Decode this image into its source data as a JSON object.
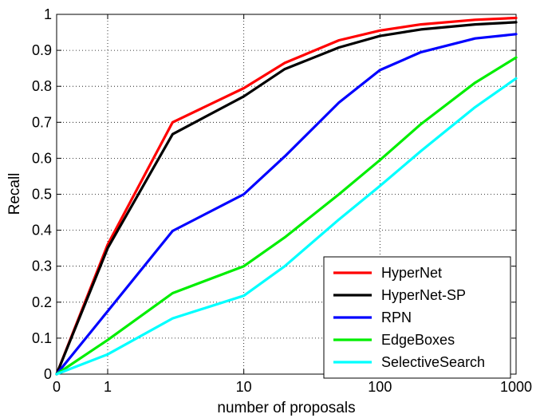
{
  "chart_data": {
    "type": "line",
    "title": "",
    "xlabel": "number of proposals",
    "ylabel": "Recall",
    "x_scale": "log",
    "x_ticks": [
      {
        "value": 0,
        "label": "0"
      },
      {
        "value": 1,
        "label": "1"
      },
      {
        "value": 10,
        "label": "10"
      },
      {
        "value": 100,
        "label": "100"
      },
      {
        "value": 1000,
        "label": "1000"
      }
    ],
    "y_ticks": [
      {
        "value": 0,
        "label": "0"
      },
      {
        "value": 0.1,
        "label": "0.1"
      },
      {
        "value": 0.2,
        "label": "0.2"
      },
      {
        "value": 0.3,
        "label": "0.3"
      },
      {
        "value": 0.4,
        "label": "0.4"
      },
      {
        "value": 0.5,
        "label": "0.5"
      },
      {
        "value": 0.6,
        "label": "0.6"
      },
      {
        "value": 0.7,
        "label": "0.7"
      },
      {
        "value": 0.8,
        "label": "0.8"
      },
      {
        "value": 0.9,
        "label": "0.9"
      },
      {
        "value": 1,
        "label": "1"
      }
    ],
    "ylim": [
      0,
      1
    ],
    "grid": true,
    "legend_position": "bottom-right",
    "series": [
      {
        "name": "HyperNet",
        "color": "#ff0000",
        "x": [
          0,
          1,
          3,
          10,
          20,
          50,
          100,
          200,
          500,
          1000
        ],
        "y": [
          0,
          0.36,
          0.7,
          0.795,
          0.865,
          0.928,
          0.955,
          0.972,
          0.985,
          0.99
        ]
      },
      {
        "name": "HyperNet-SP",
        "color": "#000000",
        "x": [
          0,
          1,
          3,
          10,
          20,
          50,
          100,
          200,
          500,
          1000
        ],
        "y": [
          0,
          0.35,
          0.667,
          0.772,
          0.848,
          0.908,
          0.94,
          0.958,
          0.972,
          0.978
        ]
      },
      {
        "name": "RPN",
        "color": "#0000ff",
        "x": [
          0,
          1,
          3,
          10,
          20,
          50,
          100,
          200,
          500,
          1000
        ],
        "y": [
          0,
          0.175,
          0.398,
          0.5,
          0.605,
          0.755,
          0.845,
          0.895,
          0.933,
          0.945
        ]
      },
      {
        "name": "EdgeBoxes",
        "color": "#00ee00",
        "x": [
          0,
          1,
          3,
          10,
          20,
          50,
          100,
          200,
          500,
          1000
        ],
        "y": [
          0,
          0.095,
          0.225,
          0.3,
          0.38,
          0.5,
          0.595,
          0.695,
          0.81,
          0.88
        ]
      },
      {
        "name": "SelectiveSearch",
        "color": "#00ffff",
        "x": [
          0,
          1,
          3,
          10,
          20,
          50,
          100,
          200,
          500,
          1000
        ],
        "y": [
          0,
          0.055,
          0.155,
          0.218,
          0.3,
          0.43,
          0.523,
          0.62,
          0.742,
          0.822
        ]
      }
    ]
  }
}
